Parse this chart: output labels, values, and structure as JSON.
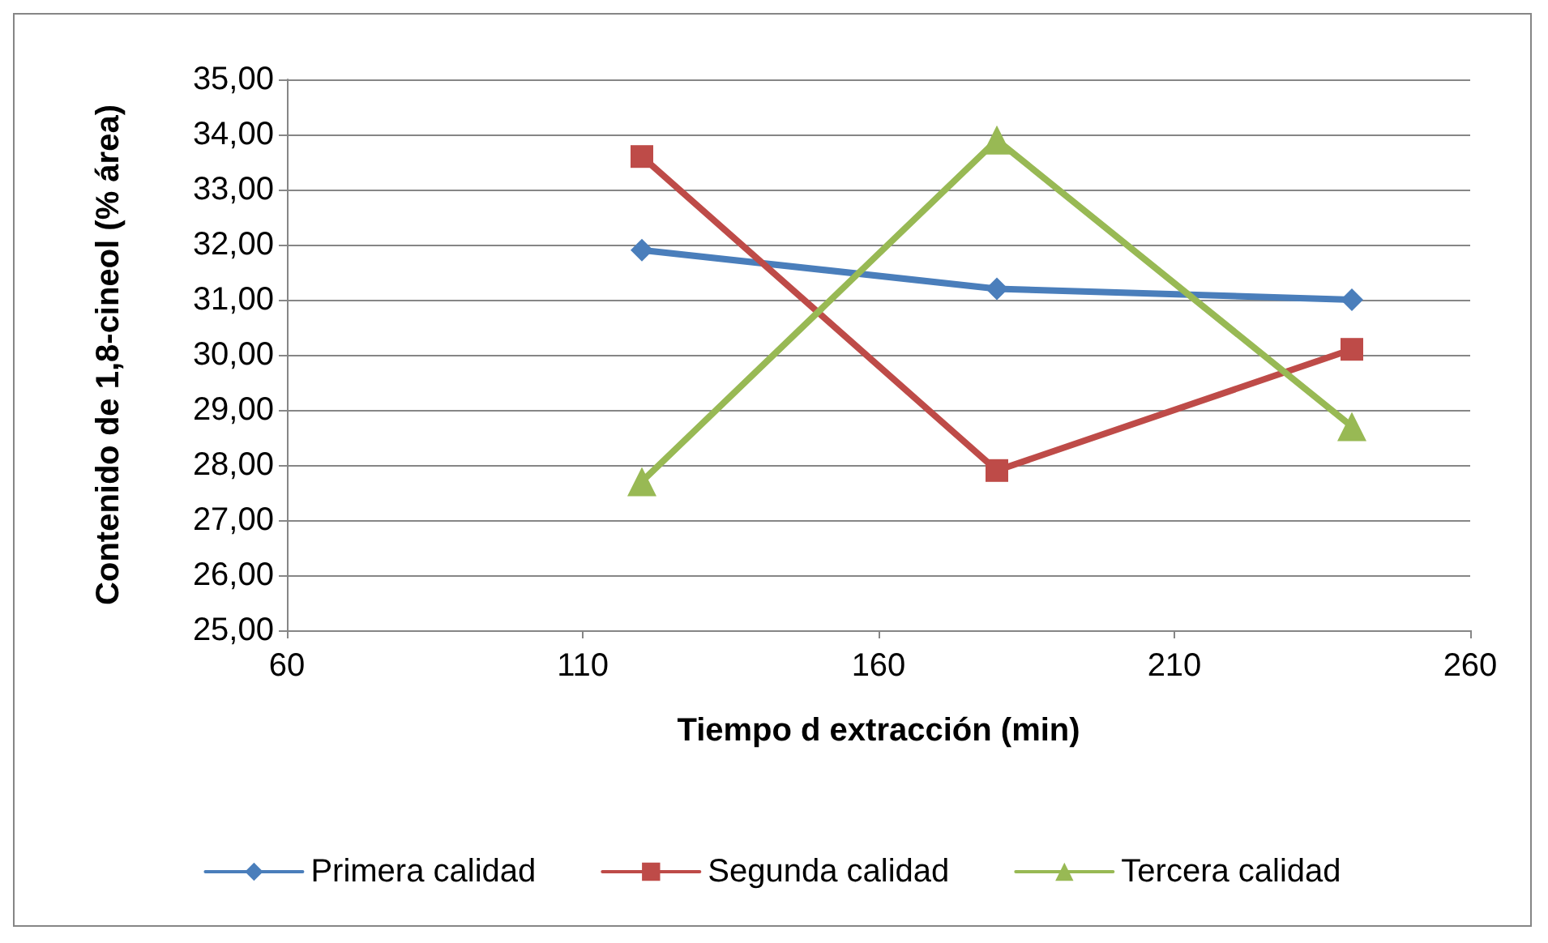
{
  "chart_data": {
    "type": "line",
    "x": [
      120,
      180,
      240
    ],
    "series": [
      {
        "name": "Primera calidad",
        "color": "#4a7ebb",
        "marker": "diamond",
        "values": [
          31.9,
          31.2,
          31.0
        ]
      },
      {
        "name": "Segunda calidad",
        "color": "#be4b48",
        "marker": "square",
        "values": [
          33.6,
          27.9,
          30.1
        ]
      },
      {
        "name": "Tercera calidad",
        "color": "#98b954",
        "marker": "triangle",
        "values": [
          27.7,
          33.9,
          28.7
        ]
      }
    ],
    "xlabel": "Tiempo d extracción (min)",
    "ylabel": "Contenido de 1,8-cineol (% área)",
    "xlim": [
      60,
      260
    ],
    "xticks": [
      60,
      110,
      160,
      210,
      260
    ],
    "ylim": [
      25,
      35
    ],
    "yticks": [
      {
        "value": 25,
        "label": "25,00"
      },
      {
        "value": 26,
        "label": "26,00"
      },
      {
        "value": 27,
        "label": "27,00"
      },
      {
        "value": 28,
        "label": "28,00"
      },
      {
        "value": 29,
        "label": "29,00"
      },
      {
        "value": 30,
        "label": "30,00"
      },
      {
        "value": 31,
        "label": "31,00"
      },
      {
        "value": 32,
        "label": "32,00"
      },
      {
        "value": 33,
        "label": "33,00"
      },
      {
        "value": 34,
        "label": "34,00"
      },
      {
        "value": 35,
        "label": "35,00"
      }
    ],
    "grid": "y",
    "legend": "bottom",
    "line_style": "solid"
  }
}
